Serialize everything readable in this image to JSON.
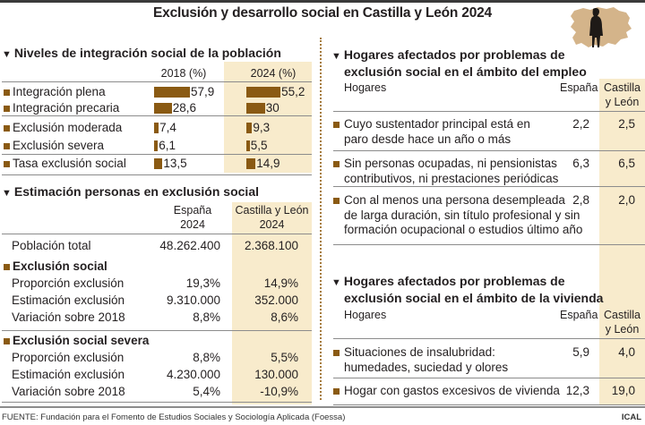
{
  "title": "Exclusión y desarrollo social en Castilla y León 2024",
  "icons": {
    "map": "castilla-leon-map-with-person-silhouette",
    "section_marker": "triangle-down",
    "row_bullet": "square"
  },
  "colors": {
    "accent_brown": "#8a5a13",
    "highlight_column": "#f8ebcc",
    "map_fill": "#d4b48a",
    "divider": "#a67c3d",
    "rule_grey": "#8c8c8c"
  },
  "chart_data": [
    {
      "type": "bar",
      "title": "Niveles de integración social de la población",
      "categories": [
        "Integración plena",
        "Integración precaria",
        "Exclusión moderada",
        "Exclusión severa",
        "Tasa exclusión social"
      ],
      "series": [
        {
          "name": "2018 (%)",
          "values": [
            57.9,
            28.6,
            7.4,
            6.1,
            13.5
          ],
          "labels": [
            "57,9",
            "28,6",
            "7,4",
            "6,1",
            "13,5"
          ]
        },
        {
          "name": "2024 (%)",
          "values": [
            55.2,
            30,
            9.3,
            5.5,
            14.9
          ],
          "labels": [
            "55,2",
            "30",
            "9,3",
            "5,5",
            "14,9"
          ]
        }
      ],
      "xlabel": "",
      "ylabel": "%",
      "orientation": "horizontal",
      "highlighted_series": "2024 (%)"
    },
    {
      "type": "table",
      "title": "Estimación personas en exclusión social",
      "columns": [
        "",
        "España 2024",
        "Castilla y León 2024"
      ],
      "rows": [
        [
          "Población total",
          "48.262.400",
          "2.368.100"
        ],
        [
          "Exclusión social",
          "",
          ""
        ],
        [
          "Proporción exclusión",
          "19,3%",
          "14,9%"
        ],
        [
          "Estimación exclusión",
          "9.310.000",
          "352.000"
        ],
        [
          "Variación sobre 2018",
          "8,8%",
          "8,6%"
        ],
        [
          "Exclusión social severa",
          "",
          ""
        ],
        [
          "Proporción exclusión",
          "8,8%",
          "5,5%"
        ],
        [
          "Estimación exclusión",
          "4.230.000",
          "130.000"
        ],
        [
          "Variación sobre 2018",
          "5,4%",
          "-10,9%"
        ]
      ]
    },
    {
      "type": "table",
      "title": "Hogares afectados por problemas de exclusión social en el ámbito del empleo",
      "columns": [
        "Hogares",
        "España",
        "Castilla y León"
      ],
      "rows": [
        [
          "Cuyo sustentador principal está en paro desde hace un año o más",
          "2,2",
          "2,5"
        ],
        [
          "Sin personas ocupadas, ni pensionistas contributivos, ni prestaciones periódicas",
          "6,3",
          "6,5"
        ],
        [
          "Con al menos una persona desempleada de larga duración, sin título profesional y sin formación ocupacional o estudios último año",
          "2,8",
          "2,0"
        ]
      ]
    },
    {
      "type": "table",
      "title": "Hogares afectados por problemas de exclusión social en el ámbito de la vivienda",
      "columns": [
        "Hogares",
        "España",
        "Castilla y León"
      ],
      "rows": [
        [
          "Situaciones de insalubridad: humedades, suciedad y olores",
          "5,9",
          "4,0"
        ],
        [
          "Hogar con gastos excesivos de vivienda",
          "12,3",
          "19,0"
        ]
      ]
    }
  ],
  "integracion": {
    "heading": "Niveles de integración social de la población",
    "col_2018": "2018 (%)",
    "col_2024": "2024 (%)",
    "rows": [
      {
        "label": "Integración plena",
        "v2018": 57.9,
        "l2018": "57,9",
        "v2024": 55.2,
        "l2024": "55,2"
      },
      {
        "label": "Integración precaria",
        "v2018": 28.6,
        "l2018": "28,6",
        "v2024": 30,
        "l2024": "30"
      },
      {
        "label": "Exclusión moderada",
        "v2018": 7.4,
        "l2018": "7,4",
        "v2024": 9.3,
        "l2024": "9,3"
      },
      {
        "label": "Exclusión severa",
        "v2018": 6.1,
        "l2018": "6,1",
        "v2024": 5.5,
        "l2024": "5,5"
      },
      {
        "label": "Tasa exclusión social",
        "v2018": 13.5,
        "l2018": "13,5",
        "v2024": 14.9,
        "l2024": "14,9"
      }
    ]
  },
  "estimacion": {
    "heading": "Estimación personas en exclusión social",
    "col_es_1": "España",
    "col_es_2": "2024",
    "col_cyl_1": "Castilla y León",
    "col_cyl_2": "2024",
    "poblacion": {
      "label": "Población total",
      "es": "48.262.400",
      "cyl": "2.368.100"
    },
    "grupos": [
      {
        "label": "Exclusión social",
        "rows": [
          {
            "label": "Proporción exclusión",
            "es": "19,3%",
            "cyl": "14,9%"
          },
          {
            "label": "Estimación exclusión",
            "es": "9.310.000",
            "cyl": "352.000"
          },
          {
            "label": "Variación sobre 2018",
            "es": "8,8%",
            "cyl": "8,6%"
          }
        ]
      },
      {
        "label": "Exclusión social severa",
        "rows": [
          {
            "label": "Proporción exclusión",
            "es": "8,8%",
            "cyl": "5,5%"
          },
          {
            "label": "Estimación exclusión",
            "es": "4.230.000",
            "cyl": "130.000"
          },
          {
            "label": "Variación sobre 2018",
            "es": "5,4%",
            "cyl": "-10,9%"
          }
        ]
      }
    ]
  },
  "empleo": {
    "heading_1": "Hogares afectados por problemas de",
    "heading_2": "exclusión social en el ámbito del empleo",
    "col_label": "Hogares",
    "col_es": "España",
    "col_cyl_1": "Castilla",
    "col_cyl_2": "y León",
    "rows": [
      {
        "lines": [
          "Cuyo sustentador principal está en",
          "paro desde hace un año o más"
        ],
        "es": "2,2",
        "cyl": "2,5"
      },
      {
        "lines": [
          "Sin personas ocupadas, ni pensionistas",
          "contributivos, ni prestaciones periódicas"
        ],
        "es": "6,3",
        "cyl": "6,5"
      },
      {
        "lines": [
          "Con al menos una persona desempleada",
          "de larga duración, sin título profesional y sin",
          "formación ocupacional o estudios último año"
        ],
        "es": "2,8",
        "cyl": "2,0"
      }
    ]
  },
  "vivienda": {
    "heading_1": "Hogares afectados por problemas de",
    "heading_2": "exclusión social en el ámbito de la vivienda",
    "col_label": "Hogares",
    "col_es": "España",
    "col_cyl_1": "Castilla",
    "col_cyl_2": "y León",
    "rows": [
      {
        "lines": [
          "Situaciones de insalubridad:",
          "humedades, suciedad y olores"
        ],
        "es": "5,9",
        "cyl": "4,0"
      },
      {
        "lines": [
          "Hogar con gastos excesivos de vivienda"
        ],
        "es": "12,3",
        "cyl": "19,0"
      }
    ]
  },
  "footer": {
    "source": "FUENTE: Fundación para el Fomento de Estudios Sociales y Sociología Aplicada (Foessa)",
    "credit": "ICAL"
  }
}
